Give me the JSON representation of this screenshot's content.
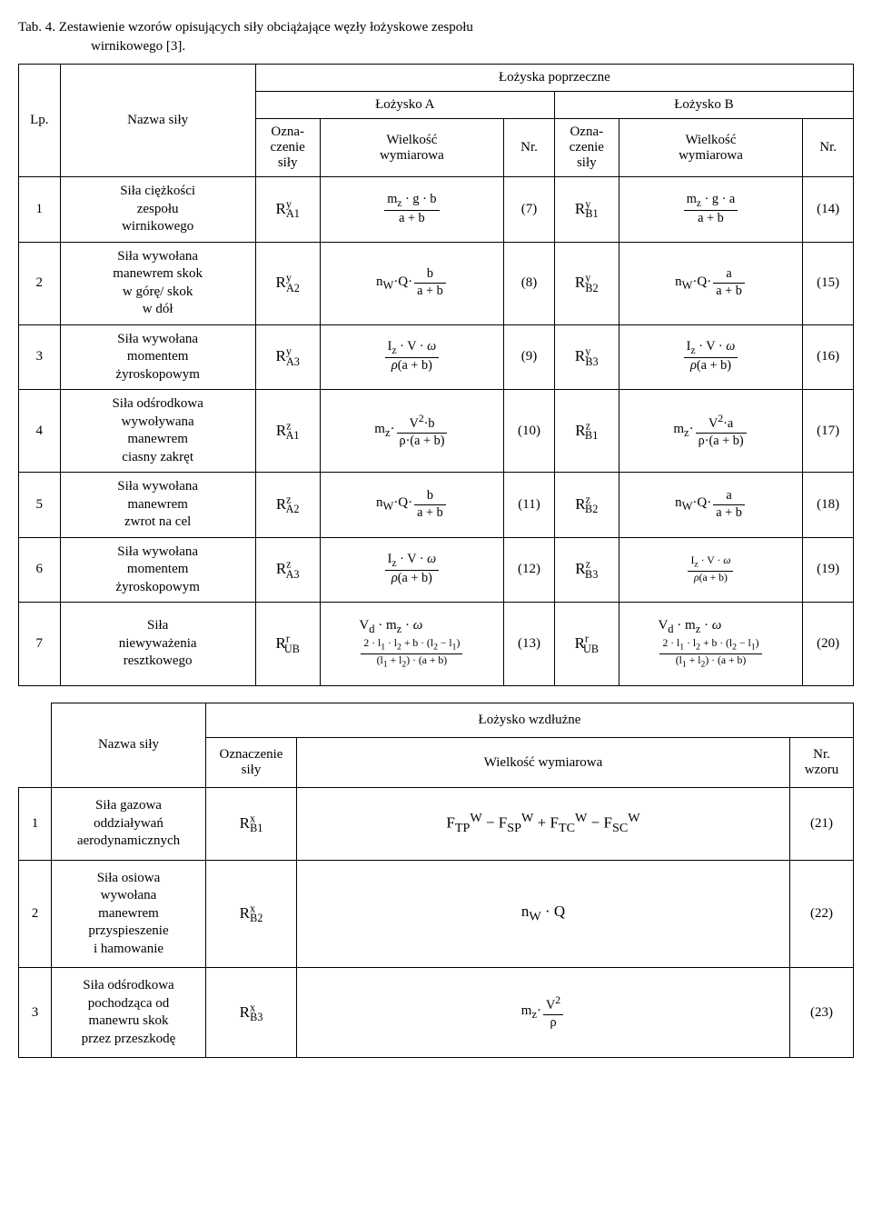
{
  "caption": {
    "lead": "Tab. 4.",
    "text_line1": "Zestawienie wzorów opisujących siły obciążające węzły łożyskowe zespołu",
    "text_line2": "wirnikowego [3]."
  },
  "top_table": {
    "headers": {
      "lozyska_poprzeczne": "Łożyska poprzeczne",
      "lp": "Lp.",
      "nazwa_sily": "Nazwa siły",
      "lozysko_a": "Łożysko A",
      "lozysko_b": "Łożysko B",
      "ozn_sily_a": "Ozna-\nczenie\nsiły",
      "wielk_wym_a": "Wielkość\nwymiarowa",
      "nr_a": "Nr.",
      "ozn_sily_b": "Ozna-\nczenie\nsiły",
      "wielk_wym_b": "Wielkość\nwymiarowa",
      "nr_b": "Nr."
    },
    "rows": [
      {
        "lp": "1",
        "name": "Siła ciężkości\nzespołu\nwirnikowego",
        "symA": "R",
        "symA_sup": "y",
        "symA_sub": "A1",
        "formulaA": {
          "num": "m<sub>z</sub> · g · b",
          "den": "a + b"
        },
        "nrA": "(7)",
        "symB": "R",
        "symB_sup": "y",
        "symB_sub": "B1",
        "formulaB": {
          "num": "m<sub>z</sub> · g · a",
          "den": "a + b"
        },
        "nrB": "(14)"
      },
      {
        "lp": "2",
        "name": "Siła wywołana\nmanewrem skok\nw górę/ skok\nw dół",
        "symA": "R",
        "symA_sup": "y",
        "symA_sub": "A2",
        "formulaA": {
          "pre": "n<sub>W</sub>·Q·",
          "num": "b",
          "den": "a + b"
        },
        "nrA": "(8)",
        "symB": "R",
        "symB_sup": "y",
        "symB_sub": "B2",
        "formulaB": {
          "pre": "n<sub>W</sub>·Q·",
          "num": "a",
          "den": "a + b"
        },
        "nrB": "(15)"
      },
      {
        "lp": "3",
        "name": "Siła wywołana\nmomentem\nżyroskopowym",
        "symA": "R",
        "symA_sup": "y",
        "symA_sub": "A3",
        "formulaA": {
          "num": "I<sub>z</sub> · V · <i>ω</i>",
          "den": "<i>ρ</i>(a + b)"
        },
        "nrA": "(9)",
        "symB": "R",
        "symB_sup": "y",
        "symB_sub": "B3",
        "formulaB": {
          "num": "I<sub>z</sub> · V · <i>ω</i>",
          "den": "<i>ρ</i>(a + b)"
        },
        "nrB": "(16)"
      },
      {
        "lp": "4",
        "name": "Siła odśrodkowa\nwywoływana\nmanewrem\nciasny zakręt",
        "symA": "R",
        "symA_sup": "z",
        "symA_sub": "A1",
        "formulaA": {
          "pre": "m<sub>z</sub>·",
          "num": "V<sup>2</sup>·b",
          "den": "ρ·(a + b)"
        },
        "nrA": "(10)",
        "symB": "R",
        "symB_sup": "z",
        "symB_sub": "B1",
        "formulaB": {
          "pre": "m<sub>z</sub>·",
          "num": "V<sup>2</sup>·a",
          "den": "ρ·(a + b)"
        },
        "nrB": "(17)"
      },
      {
        "lp": "5",
        "name": "Siła wywołana\nmanewrem\nzwrot na cel",
        "symA": "R",
        "symA_sup": "z",
        "symA_sub": "A2",
        "formulaA": {
          "pre": "n<sub>W</sub>·Q·",
          "num": "b",
          "den": "a + b"
        },
        "nrA": "(11)",
        "symB": "R",
        "symB_sup": "z",
        "symB_sub": "B2",
        "formulaB": {
          "pre": "n<sub>W</sub>·Q·",
          "num": "a",
          "den": "a + b"
        },
        "nrB": "(18)"
      },
      {
        "lp": "6",
        "name": "Siła wywołana\nmomentem\nżyroskopowym",
        "symA": "R",
        "symA_sup": "z",
        "symA_sub": "A3",
        "formulaA": {
          "num": "I<sub>z</sub> · V · <i>ω</i>",
          "den": "<i>ρ</i>(a + b)"
        },
        "nrA": "(12)",
        "symB": "R",
        "symB_sup": "z",
        "symB_sub": "B3",
        "formulaB": {
          "num": "I<sub>z</sub> · V · <i>ω</i>",
          "den": "<i>ρ</i>(a + b)",
          "small": true
        },
        "nrB": "(19)"
      },
      {
        "lp": "7",
        "name": "Siła\nniewyważenia\nresztkowego",
        "symA": "R",
        "symA_sup": "r",
        "symA_sub": "UB",
        "formulaA": {
          "stack_top": "V<sub>d</sub> · m<sub>z</sub> · <i>ω</i>",
          "num": "2 · l<sub>1</sub> · l<sub>2</sub> + b · (l<sub>2</sub> − l<sub>1</sub>)",
          "den": "(l<sub>1</sub> + l<sub>2</sub>) · (a + b)",
          "small": true
        },
        "nrA": "(13)",
        "symB": "R",
        "symB_sup": "r",
        "symB_sub": "UB",
        "formulaB": {
          "stack_top": "V<sub>d</sub> · m<sub>z</sub> · <i>ω</i>",
          "num": "2 · l<sub>1</sub> · l<sub>2</sub> + b · (l<sub>2</sub> − l<sub>1</sub>)",
          "den": "(l<sub>1</sub> + l<sub>2</sub>) · (a + b)",
          "small": true
        },
        "nrB": "(20)"
      }
    ]
  },
  "bottom_table": {
    "headers": {
      "nazwa_sily": "Nazwa siły",
      "lozysko_wzdluzne": "Łożysko wzdłużne",
      "ozn_sily": "Oznaczenie\nsiły",
      "wielk_wym": "Wielkość wymiarowa",
      "nr_wzoru": "Nr.\nwzoru"
    },
    "rows": [
      {
        "lp": "1",
        "name": "Siła gazowa\noddziaływań\naerodynamicznych",
        "sym": "R",
        "sym_sup": "x",
        "sym_sub": "B1",
        "formula_html": "F<sub>TP</sub><sup>W</sup> − F<sub>SP</sub><sup>W</sup> + F<sub>TC</sub><sup>W</sup> − F<sub>SC</sub><sup>W</sup>",
        "nr": "(21)"
      },
      {
        "lp": "2",
        "name": "Siła osiowa\nwywołana\nmanewrem\nprzyspieszenie\ni hamowanie",
        "sym": "R",
        "sym_sup": "x",
        "sym_sub": "B2",
        "formula_html": "n<sub>W</sub> · Q",
        "nr": "(22)"
      },
      {
        "lp": "3",
        "name": "Siła odśrodkowa\npochodząca od\nmanewru skok\nprzez przeszkodę",
        "sym": "R",
        "sym_sup": "x",
        "sym_sub": "B3",
        "formula_frac": {
          "pre": "m<sub>z</sub>·",
          "num": "V<sup>2</sup>",
          "den": "ρ"
        },
        "nr": "(23)"
      }
    ]
  }
}
